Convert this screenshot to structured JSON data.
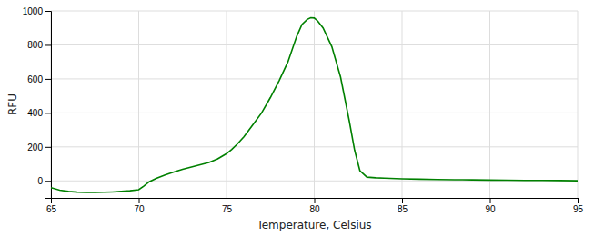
{
  "chart_data": {
    "type": "line",
    "xlabel": "Temperature, Celsius",
    "ylabel": "RFU",
    "x": [
      65.0,
      65.5,
      66.0,
      66.5,
      67.0,
      67.5,
      68.0,
      68.5,
      69.0,
      69.5,
      70.0,
      70.3,
      70.6,
      71.0,
      71.5,
      72.0,
      72.5,
      73.0,
      73.5,
      74.0,
      74.5,
      75.0,
      75.3,
      75.6,
      76.0,
      76.5,
      77.0,
      77.5,
      78.0,
      78.5,
      79.0,
      79.3,
      79.6,
      79.8,
      80.0,
      80.2,
      80.5,
      81.0,
      81.5,
      82.0,
      82.3,
      82.6,
      83.0,
      83.5,
      84.0,
      85.0,
      86.0,
      87.0,
      88.0,
      89.0,
      90.0,
      91.0,
      92.0,
      93.0,
      94.0,
      95.0
    ],
    "series": [
      {
        "color": "#008000",
        "values": [
          -40,
          -55,
          -62,
          -66,
          -68,
          -68,
          -67,
          -65,
          -62,
          -58,
          -52,
          -30,
          -5,
          15,
          35,
          52,
          68,
          82,
          95,
          108,
          130,
          160,
          185,
          215,
          260,
          330,
          400,
          490,
          590,
          700,
          850,
          920,
          950,
          960,
          958,
          940,
          900,
          790,
          610,
          350,
          180,
          60,
          22,
          18,
          16,
          12,
          10,
          8,
          7,
          6,
          5,
          4,
          3,
          3,
          2,
          1
        ]
      }
    ],
    "xlim": [
      65,
      95
    ],
    "ylim": [
      -100,
      1000
    ],
    "xticks": [
      65,
      70,
      75,
      80,
      85,
      90,
      95
    ],
    "yticks": [
      0,
      200,
      400,
      600,
      800,
      1000
    ],
    "grid": true
  }
}
